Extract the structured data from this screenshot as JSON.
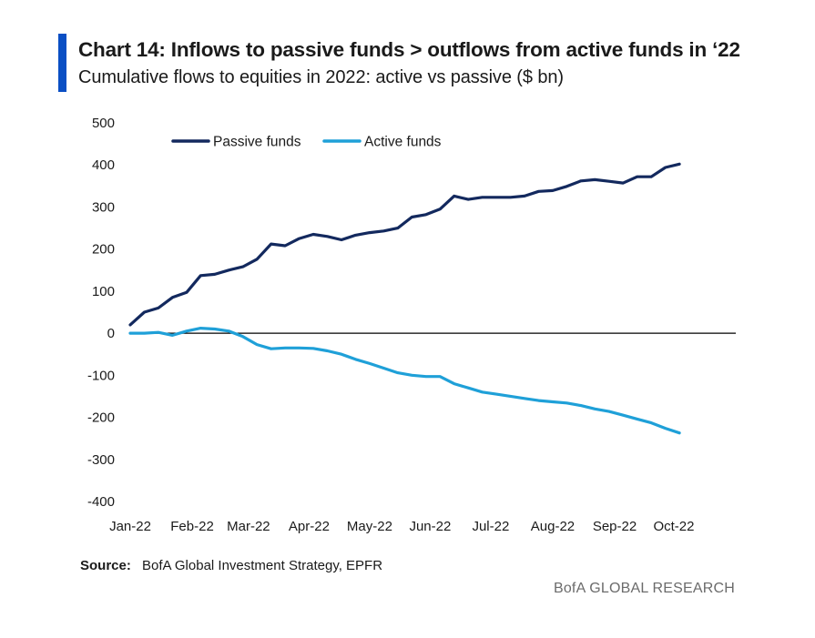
{
  "header": {
    "title": "Chart 14: Inflows to passive funds > outflows from active funds in ‘22",
    "subtitle": "Cumulative flows to equities in 2022: active vs passive ($ bn)"
  },
  "footer": {
    "source_label": "Source:",
    "source_text": "BofA Global Investment Strategy, EPFR",
    "brand": "BofA GLOBAL RESEARCH"
  },
  "colors": {
    "accent": "#0a4fc4",
    "passive": "#13295e",
    "active": "#1fa0d8",
    "zero_line": "#000000"
  },
  "chart_data": {
    "type": "line",
    "title": "Chart 14: Inflows to passive funds > outflows from active funds in ‘22",
    "subtitle": "Cumulative flows to equities in 2022: active vs passive ($ bn)",
    "xlabel": "",
    "ylabel": "",
    "ylim": [
      -400,
      500
    ],
    "yticks": [
      500,
      400,
      300,
      200,
      100,
      0,
      -100,
      -200,
      -300,
      -400
    ],
    "xlim": [
      0,
      43
    ],
    "month_labels": [
      "Jan-22",
      "Feb-22",
      "Mar-22",
      "Apr-22",
      "May-22",
      "Jun-22",
      "Jul-22",
      "Aug-22",
      "Sep-22",
      "Oct-22"
    ],
    "month_positions": [
      0,
      4.4,
      8.4,
      12.7,
      17.0,
      21.3,
      25.6,
      30.0,
      34.4,
      38.6
    ],
    "grid": false,
    "zero_line": true,
    "legend_position": "top-left",
    "series": [
      {
        "name": "Passive funds",
        "color_key": "passive",
        "values": [
          20,
          50,
          60,
          85,
          97,
          137,
          140,
          150,
          158,
          176,
          212,
          208,
          225,
          235,
          230,
          222,
          233,
          239,
          243,
          250,
          276,
          282,
          295,
          326,
          318,
          323,
          323,
          323,
          326,
          337,
          339,
          349,
          362,
          365,
          361,
          357,
          372,
          372,
          394,
          402
        ]
      },
      {
        "name": "Active funds",
        "color_key": "active",
        "values": [
          0,
          0,
          2,
          -5,
          5,
          12,
          10,
          5,
          -8,
          -27,
          -37,
          -35,
          -35,
          -36,
          -42,
          -50,
          -62,
          -72,
          -83,
          -94,
          -100,
          -103,
          -103,
          -120,
          -130,
          -140,
          -145,
          -150,
          -155,
          -160,
          -163,
          -166,
          -172,
          -180,
          -186,
          -195,
          -204,
          -213,
          -226,
          -237
        ]
      }
    ]
  }
}
